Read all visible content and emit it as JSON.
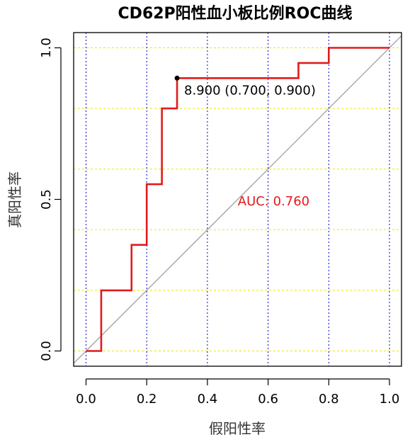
{
  "chart_data": {
    "type": "line",
    "title": "CD62P阳性血小板比例ROC曲线",
    "xlabel": "假阳性率",
    "ylabel": "真阳性率",
    "xlim": [
      0,
      1
    ],
    "ylim": [
      0,
      1
    ],
    "x_ticks": [
      "0.0",
      "0.2",
      "0.4",
      "0.6",
      "0.8",
      "1.0"
    ],
    "y_ticks": [
      "0.0",
      "0.5",
      "1.0"
    ],
    "x_grid": [
      0,
      0.2,
      0.4,
      0.6,
      0.8,
      1.0
    ],
    "y_grid": [
      0,
      0.2,
      0.4,
      0.6,
      0.8,
      1.0
    ],
    "vertical_grid_color": "#0000cc",
    "horizontal_grid_color": "#e8e800",
    "series": [
      {
        "color": "#e31a1c",
        "x": [
          0,
          0.05,
          0.05,
          0.15,
          0.15,
          0.2,
          0.2,
          0.25,
          0.25,
          0.3,
          0.3,
          0.7,
          0.7,
          0.8,
          0.8,
          1.0
        ],
        "y": [
          0,
          0,
          0.2,
          0.2,
          0.35,
          0.35,
          0.55,
          0.55,
          0.8,
          0.8,
          0.9,
          0.9,
          0.95,
          0.95,
          1.0,
          1.0
        ]
      }
    ],
    "reference_line": {
      "x": [
        0,
        1
      ],
      "y": [
        0,
        1
      ],
      "color": "#999999"
    },
    "best_point": {
      "x": 0.3,
      "y": 0.9,
      "label": "8.900 (0.700, 0.900)"
    },
    "auc_label": "AUC: 0.760",
    "auc_color": "#e31a1c"
  }
}
